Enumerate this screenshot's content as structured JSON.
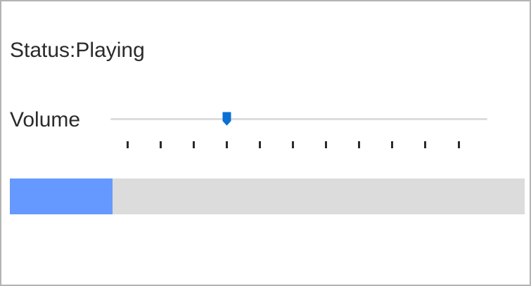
{
  "status": {
    "label": "Status:",
    "value": "Playing"
  },
  "volume": {
    "label": "Volume",
    "min": 0,
    "max": 10,
    "value": 3,
    "tick_count": 11,
    "accent_color": "#0a6fd6",
    "thumb_icon": "slider-thumb-pentagon"
  },
  "progress": {
    "fraction": 0.2,
    "fill_color": "#6699ff",
    "track_color": "#dcdcdc"
  }
}
